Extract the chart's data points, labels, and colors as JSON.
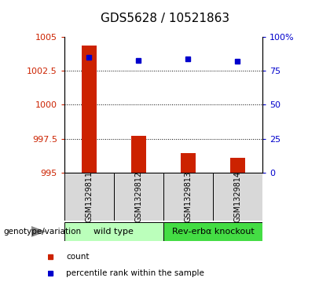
{
  "title": "GDS5628 / 10521863",
  "samples": [
    "GSM1329811",
    "GSM1329812",
    "GSM1329813",
    "GSM1329814"
  ],
  "counts": [
    1004.4,
    997.7,
    996.4,
    996.1
  ],
  "percentiles": [
    85,
    83,
    84,
    82
  ],
  "ylim_left": [
    995,
    1005
  ],
  "ylim_right": [
    0,
    100
  ],
  "yticks_left": [
    995,
    997.5,
    1000,
    1002.5,
    1005
  ],
  "yticks_right": [
    0,
    25,
    50,
    75,
    100
  ],
  "ytick_labels_left": [
    "995",
    "997.5",
    "1000",
    "1002.5",
    "1005"
  ],
  "ytick_labels_right": [
    "0",
    "25",
    "50",
    "75",
    "100%"
  ],
  "bar_color": "#cc2200",
  "dot_color": "#0000cc",
  "bar_bottom": 995,
  "groups": [
    {
      "label": "wild type",
      "samples": [
        0,
        1
      ],
      "color": "#bbffbb"
    },
    {
      "label": "Rev-erbα knockout",
      "samples": [
        2,
        3
      ],
      "color": "#44dd44"
    }
  ],
  "legend_items": [
    {
      "label": "count",
      "color": "#cc2200"
    },
    {
      "label": "percentile rank within the sample",
      "color": "#0000cc"
    }
  ],
  "xlabel_text": "genotype/variation",
  "title_fontsize": 11,
  "tick_fontsize": 8,
  "sample_fontsize": 7,
  "group_fontsize": 8
}
